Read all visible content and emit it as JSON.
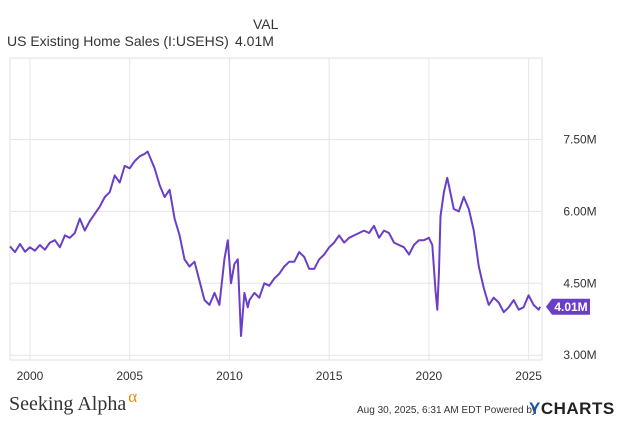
{
  "header": {
    "column_label": "VAL",
    "series_name": "US Existing Home Sales (I:USEHS)",
    "series_value": "4.01M"
  },
  "footer": {
    "logo_text": "Seeking Alpha",
    "logo_mark": "α",
    "timestamp": "Aug 30, 2025, 6:31 AM EDT",
    "powered_by": "Powered by",
    "brand_mark": "Y",
    "brand_name": "CHARTS"
  },
  "colors": {
    "line": "#6a3fc7",
    "grid": "#e6e6e6",
    "axis_text": "#333333",
    "last_value_badge": "#6a3fc7"
  },
  "chart_data": {
    "type": "line",
    "x_unit": "year",
    "xlim": [
      1999.0,
      2025.67
    ],
    "ylim": [
      2.9,
      9.2
    ],
    "grid": true,
    "x_ticks": [
      {
        "value": 2000,
        "label": "2000"
      },
      {
        "value": 2005,
        "label": "2005"
      },
      {
        "value": 2010,
        "label": "2010"
      },
      {
        "value": 2015,
        "label": "2015"
      },
      {
        "value": 2020,
        "label": "2020"
      },
      {
        "value": 2025,
        "label": "2025"
      }
    ],
    "y_ticks": [
      {
        "value": 3.0,
        "label": "3.00M"
      },
      {
        "value": 4.5,
        "label": "4.50M"
      },
      {
        "value": 6.0,
        "label": "6.00M"
      },
      {
        "value": 7.5,
        "label": "7.50M"
      }
    ],
    "last_value_label": "4.01M",
    "series": [
      {
        "values_unit": "millions",
        "x": [
          1999.0,
          1999.25,
          1999.5,
          1999.75,
          2000.0,
          2000.25,
          2000.5,
          2000.75,
          2001.0,
          2001.25,
          2001.5,
          2001.75,
          2002.0,
          2002.25,
          2002.5,
          2002.75,
          2003.0,
          2003.25,
          2003.5,
          2003.75,
          2004.0,
          2004.25,
          2004.5,
          2004.75,
          2005.0,
          2005.25,
          2005.5,
          2005.75,
          2005.9,
          2006.25,
          2006.5,
          2006.75,
          2007.0,
          2007.25,
          2007.5,
          2007.75,
          2008.0,
          2008.25,
          2008.5,
          2008.75,
          2009.0,
          2009.25,
          2009.5,
          2009.75,
          2009.92,
          2010.08,
          2010.25,
          2010.42,
          2010.58,
          2010.75,
          2010.92,
          2011.0,
          2011.25,
          2011.5,
          2011.75,
          2012.0,
          2012.25,
          2012.5,
          2012.75,
          2013.0,
          2013.25,
          2013.5,
          2013.75,
          2014.0,
          2014.25,
          2014.5,
          2014.75,
          2015.0,
          2015.25,
          2015.5,
          2015.75,
          2016.0,
          2016.25,
          2016.5,
          2016.75,
          2017.0,
          2017.25,
          2017.5,
          2017.75,
          2018.0,
          2018.25,
          2018.5,
          2018.75,
          2019.0,
          2019.25,
          2019.5,
          2019.75,
          2020.0,
          2020.17,
          2020.33,
          2020.42,
          2020.5,
          2020.58,
          2020.75,
          2020.92,
          2021.0,
          2021.25,
          2021.5,
          2021.75,
          2022.0,
          2022.25,
          2022.5,
          2022.75,
          2023.0,
          2023.25,
          2023.5,
          2023.75,
          2024.0,
          2024.25,
          2024.5,
          2024.75,
          2025.0,
          2025.25,
          2025.5,
          2025.58
        ],
        "values": [
          5.27,
          5.15,
          5.32,
          5.16,
          5.25,
          5.18,
          5.3,
          5.2,
          5.35,
          5.4,
          5.25,
          5.5,
          5.45,
          5.55,
          5.85,
          5.6,
          5.8,
          5.95,
          6.1,
          6.3,
          6.4,
          6.75,
          6.6,
          6.95,
          6.9,
          7.05,
          7.15,
          7.2,
          7.25,
          6.9,
          6.55,
          6.3,
          6.45,
          5.85,
          5.5,
          5.0,
          4.85,
          4.95,
          4.55,
          4.15,
          4.05,
          4.3,
          4.05,
          5.0,
          5.4,
          4.5,
          4.9,
          5.0,
          3.4,
          4.3,
          4.0,
          4.15,
          4.3,
          4.2,
          4.5,
          4.45,
          4.6,
          4.7,
          4.85,
          4.95,
          4.95,
          5.15,
          5.05,
          4.8,
          4.8,
          5.0,
          5.1,
          5.25,
          5.35,
          5.5,
          5.35,
          5.45,
          5.5,
          5.55,
          5.6,
          5.55,
          5.7,
          5.45,
          5.6,
          5.55,
          5.35,
          5.3,
          5.25,
          5.1,
          5.3,
          5.4,
          5.4,
          5.45,
          5.3,
          4.35,
          3.95,
          4.7,
          5.9,
          6.4,
          6.7,
          6.55,
          6.05,
          6.0,
          6.3,
          6.05,
          5.6,
          4.85,
          4.4,
          4.05,
          4.2,
          4.1,
          3.9,
          4.0,
          4.15,
          3.95,
          4.0,
          4.25,
          4.05,
          3.95,
          4.01
        ]
      }
    ]
  }
}
